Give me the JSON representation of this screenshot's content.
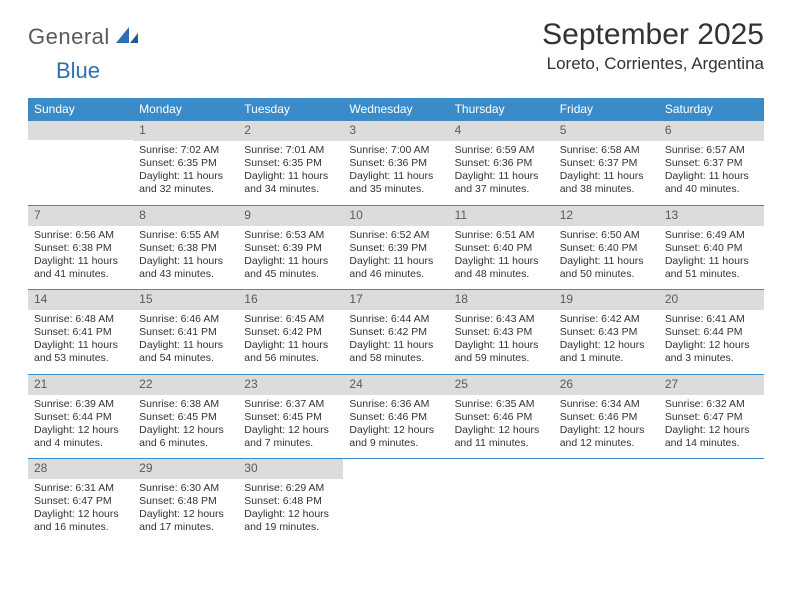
{
  "logo": {
    "main": "General",
    "accent": "Blue"
  },
  "title": "September 2025",
  "location": "Loreto, Corrientes, Argentina",
  "colors": {
    "header_bg": "#3b8bc8",
    "header_text": "#ffffff",
    "date_bar_bg": "#dcdcdc",
    "date_bar_text": "#5a5a5a",
    "rule": "#3b8bc8",
    "body_text": "#333333",
    "logo_gray": "#5a5a5a",
    "logo_blue": "#2f6fb0"
  },
  "day_names": [
    "Sunday",
    "Monday",
    "Tuesday",
    "Wednesday",
    "Thursday",
    "Friday",
    "Saturday"
  ],
  "weeks": [
    [
      {
        "date": "",
        "sunrise": "",
        "sunset": "",
        "daylight": ""
      },
      {
        "date": "1",
        "sunrise": "Sunrise: 7:02 AM",
        "sunset": "Sunset: 6:35 PM",
        "daylight": "Daylight: 11 hours and 32 minutes."
      },
      {
        "date": "2",
        "sunrise": "Sunrise: 7:01 AM",
        "sunset": "Sunset: 6:35 PM",
        "daylight": "Daylight: 11 hours and 34 minutes."
      },
      {
        "date": "3",
        "sunrise": "Sunrise: 7:00 AM",
        "sunset": "Sunset: 6:36 PM",
        "daylight": "Daylight: 11 hours and 35 minutes."
      },
      {
        "date": "4",
        "sunrise": "Sunrise: 6:59 AM",
        "sunset": "Sunset: 6:36 PM",
        "daylight": "Daylight: 11 hours and 37 minutes."
      },
      {
        "date": "5",
        "sunrise": "Sunrise: 6:58 AM",
        "sunset": "Sunset: 6:37 PM",
        "daylight": "Daylight: 11 hours and 38 minutes."
      },
      {
        "date": "6",
        "sunrise": "Sunrise: 6:57 AM",
        "sunset": "Sunset: 6:37 PM",
        "daylight": "Daylight: 11 hours and 40 minutes."
      }
    ],
    [
      {
        "date": "7",
        "sunrise": "Sunrise: 6:56 AM",
        "sunset": "Sunset: 6:38 PM",
        "daylight": "Daylight: 11 hours and 41 minutes."
      },
      {
        "date": "8",
        "sunrise": "Sunrise: 6:55 AM",
        "sunset": "Sunset: 6:38 PM",
        "daylight": "Daylight: 11 hours and 43 minutes."
      },
      {
        "date": "9",
        "sunrise": "Sunrise: 6:53 AM",
        "sunset": "Sunset: 6:39 PM",
        "daylight": "Daylight: 11 hours and 45 minutes."
      },
      {
        "date": "10",
        "sunrise": "Sunrise: 6:52 AM",
        "sunset": "Sunset: 6:39 PM",
        "daylight": "Daylight: 11 hours and 46 minutes."
      },
      {
        "date": "11",
        "sunrise": "Sunrise: 6:51 AM",
        "sunset": "Sunset: 6:40 PM",
        "daylight": "Daylight: 11 hours and 48 minutes."
      },
      {
        "date": "12",
        "sunrise": "Sunrise: 6:50 AM",
        "sunset": "Sunset: 6:40 PM",
        "daylight": "Daylight: 11 hours and 50 minutes."
      },
      {
        "date": "13",
        "sunrise": "Sunrise: 6:49 AM",
        "sunset": "Sunset: 6:40 PM",
        "daylight": "Daylight: 11 hours and 51 minutes."
      }
    ],
    [
      {
        "date": "14",
        "sunrise": "Sunrise: 6:48 AM",
        "sunset": "Sunset: 6:41 PM",
        "daylight": "Daylight: 11 hours and 53 minutes."
      },
      {
        "date": "15",
        "sunrise": "Sunrise: 6:46 AM",
        "sunset": "Sunset: 6:41 PM",
        "daylight": "Daylight: 11 hours and 54 minutes."
      },
      {
        "date": "16",
        "sunrise": "Sunrise: 6:45 AM",
        "sunset": "Sunset: 6:42 PM",
        "daylight": "Daylight: 11 hours and 56 minutes."
      },
      {
        "date": "17",
        "sunrise": "Sunrise: 6:44 AM",
        "sunset": "Sunset: 6:42 PM",
        "daylight": "Daylight: 11 hours and 58 minutes."
      },
      {
        "date": "18",
        "sunrise": "Sunrise: 6:43 AM",
        "sunset": "Sunset: 6:43 PM",
        "daylight": "Daylight: 11 hours and 59 minutes."
      },
      {
        "date": "19",
        "sunrise": "Sunrise: 6:42 AM",
        "sunset": "Sunset: 6:43 PM",
        "daylight": "Daylight: 12 hours and 1 minute."
      },
      {
        "date": "20",
        "sunrise": "Sunrise: 6:41 AM",
        "sunset": "Sunset: 6:44 PM",
        "daylight": "Daylight: 12 hours and 3 minutes."
      }
    ],
    [
      {
        "date": "21",
        "sunrise": "Sunrise: 6:39 AM",
        "sunset": "Sunset: 6:44 PM",
        "daylight": "Daylight: 12 hours and 4 minutes."
      },
      {
        "date": "22",
        "sunrise": "Sunrise: 6:38 AM",
        "sunset": "Sunset: 6:45 PM",
        "daylight": "Daylight: 12 hours and 6 minutes."
      },
      {
        "date": "23",
        "sunrise": "Sunrise: 6:37 AM",
        "sunset": "Sunset: 6:45 PM",
        "daylight": "Daylight: 12 hours and 7 minutes."
      },
      {
        "date": "24",
        "sunrise": "Sunrise: 6:36 AM",
        "sunset": "Sunset: 6:46 PM",
        "daylight": "Daylight: 12 hours and 9 minutes."
      },
      {
        "date": "25",
        "sunrise": "Sunrise: 6:35 AM",
        "sunset": "Sunset: 6:46 PM",
        "daylight": "Daylight: 12 hours and 11 minutes."
      },
      {
        "date": "26",
        "sunrise": "Sunrise: 6:34 AM",
        "sunset": "Sunset: 6:46 PM",
        "daylight": "Daylight: 12 hours and 12 minutes."
      },
      {
        "date": "27",
        "sunrise": "Sunrise: 6:32 AM",
        "sunset": "Sunset: 6:47 PM",
        "daylight": "Daylight: 12 hours and 14 minutes."
      }
    ],
    [
      {
        "date": "28",
        "sunrise": "Sunrise: 6:31 AM",
        "sunset": "Sunset: 6:47 PM",
        "daylight": "Daylight: 12 hours and 16 minutes."
      },
      {
        "date": "29",
        "sunrise": "Sunrise: 6:30 AM",
        "sunset": "Sunset: 6:48 PM",
        "daylight": "Daylight: 12 hours and 17 minutes."
      },
      {
        "date": "30",
        "sunrise": "Sunrise: 6:29 AM",
        "sunset": "Sunset: 6:48 PM",
        "daylight": "Daylight: 12 hours and 19 minutes."
      },
      {
        "date": "",
        "sunrise": "",
        "sunset": "",
        "daylight": ""
      },
      {
        "date": "",
        "sunrise": "",
        "sunset": "",
        "daylight": ""
      },
      {
        "date": "",
        "sunrise": "",
        "sunset": "",
        "daylight": ""
      },
      {
        "date": "",
        "sunrise": "",
        "sunset": "",
        "daylight": ""
      }
    ]
  ]
}
